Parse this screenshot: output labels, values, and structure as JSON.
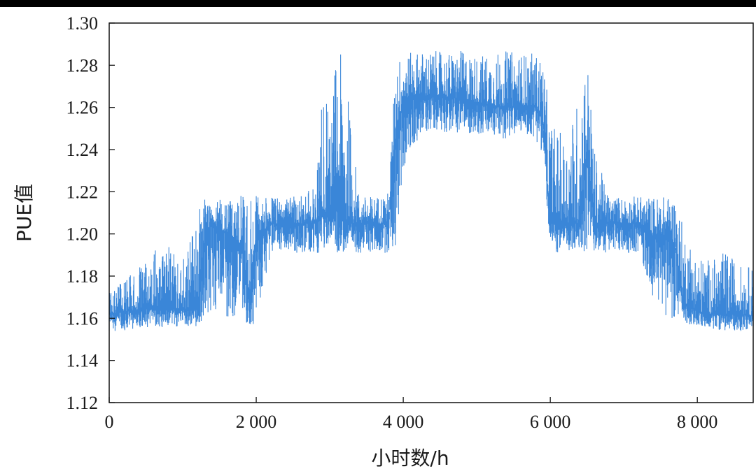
{
  "chart_data": {
    "type": "line",
    "xlabel": "小时数/h",
    "ylabel": "PUE值",
    "xlim": [
      0,
      8760
    ],
    "ylim": [
      1.12,
      1.3
    ],
    "xticks": [
      0,
      2000,
      4000,
      6000,
      8000
    ],
    "xtick_labels": [
      "0",
      "2 000",
      "4 000",
      "6 000",
      "8 000"
    ],
    "yticks": [
      1.12,
      1.14,
      1.16,
      1.18,
      1.2,
      1.22,
      1.24,
      1.26,
      1.28,
      1.3
    ],
    "ytick_labels": [
      "1.12",
      "1.14",
      "1.16",
      "1.18",
      "1.20",
      "1.22",
      "1.24",
      "1.26",
      "1.28",
      "1.30"
    ],
    "grid": false,
    "series_color": "#2f80d6",
    "series": [
      {
        "x": [
          0,
          200,
          400,
          600,
          800,
          1000,
          1200,
          1300,
          1400,
          1600,
          1800,
          1900,
          2000,
          2200,
          2400,
          2600,
          2800,
          2900,
          3000,
          3100,
          3200,
          3400,
          3600,
          3800,
          3900,
          4000,
          4200,
          4400,
          4600,
          4800,
          5000,
          5200,
          5400,
          5600,
          5800,
          5900,
          6000,
          6200,
          6400,
          6500,
          6600,
          6800,
          7000,
          7200,
          7400,
          7600,
          7700,
          7800,
          8000,
          8200,
          8400,
          8600,
          8760
        ],
        "min": [
          1.154,
          1.154,
          1.155,
          1.155,
          1.156,
          1.156,
          1.156,
          1.158,
          1.165,
          1.16,
          1.158,
          1.155,
          1.156,
          1.191,
          1.191,
          1.191,
          1.191,
          1.191,
          1.191,
          1.191,
          1.191,
          1.191,
          1.191,
          1.191,
          1.191,
          1.23,
          1.245,
          1.25,
          1.248,
          1.248,
          1.247,
          1.246,
          1.245,
          1.248,
          1.245,
          1.238,
          1.191,
          1.191,
          1.191,
          1.191,
          1.191,
          1.191,
          1.191,
          1.191,
          1.17,
          1.16,
          1.16,
          1.158,
          1.156,
          1.155,
          1.154,
          1.154,
          1.155
        ],
        "max": [
          1.172,
          1.178,
          1.185,
          1.192,
          1.194,
          1.19,
          1.21,
          1.218,
          1.218,
          1.218,
          1.218,
          1.218,
          1.218,
          1.218,
          1.218,
          1.218,
          1.225,
          1.27,
          1.26,
          1.288,
          1.282,
          1.218,
          1.218,
          1.22,
          1.284,
          1.285,
          1.287,
          1.287,
          1.286,
          1.287,
          1.285,
          1.286,
          1.287,
          1.286,
          1.286,
          1.283,
          1.255,
          1.245,
          1.268,
          1.287,
          1.24,
          1.218,
          1.218,
          1.218,
          1.218,
          1.218,
          1.218,
          1.205,
          1.19,
          1.188,
          1.192,
          1.185,
          1.185
        ],
        "typical": [
          1.162,
          1.163,
          1.164,
          1.165,
          1.165,
          1.164,
          1.165,
          1.198,
          1.205,
          1.2,
          1.195,
          1.168,
          1.198,
          1.205,
          1.205,
          1.205,
          1.205,
          1.21,
          1.21,
          1.212,
          1.205,
          1.205,
          1.205,
          1.205,
          1.25,
          1.262,
          1.265,
          1.266,
          1.265,
          1.264,
          1.262,
          1.261,
          1.26,
          1.261,
          1.26,
          1.255,
          1.205,
          1.205,
          1.205,
          1.238,
          1.205,
          1.205,
          1.205,
          1.205,
          1.198,
          1.2,
          1.195,
          1.168,
          1.163,
          1.162,
          1.162,
          1.162,
          1.161
        ]
      }
    ]
  }
}
